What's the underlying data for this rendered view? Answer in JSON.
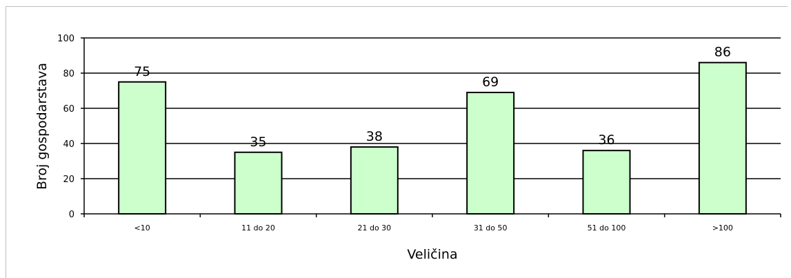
{
  "chart_data": {
    "type": "bar",
    "categories": [
      "<10",
      "11 do 20",
      "21 do 30",
      "31 do 50",
      "51 do 100",
      ">100"
    ],
    "values": [
      75,
      35,
      38,
      69,
      36,
      86
    ],
    "title": "",
    "xlabel": "Veličina",
    "ylabel": "Broj gospodarstava",
    "ylim": [
      0,
      100
    ],
    "yticks": [
      0,
      20,
      40,
      60,
      80,
      100
    ],
    "grid": true,
    "bar_color": "#ccffcc",
    "bar_stroke": "#000000"
  }
}
